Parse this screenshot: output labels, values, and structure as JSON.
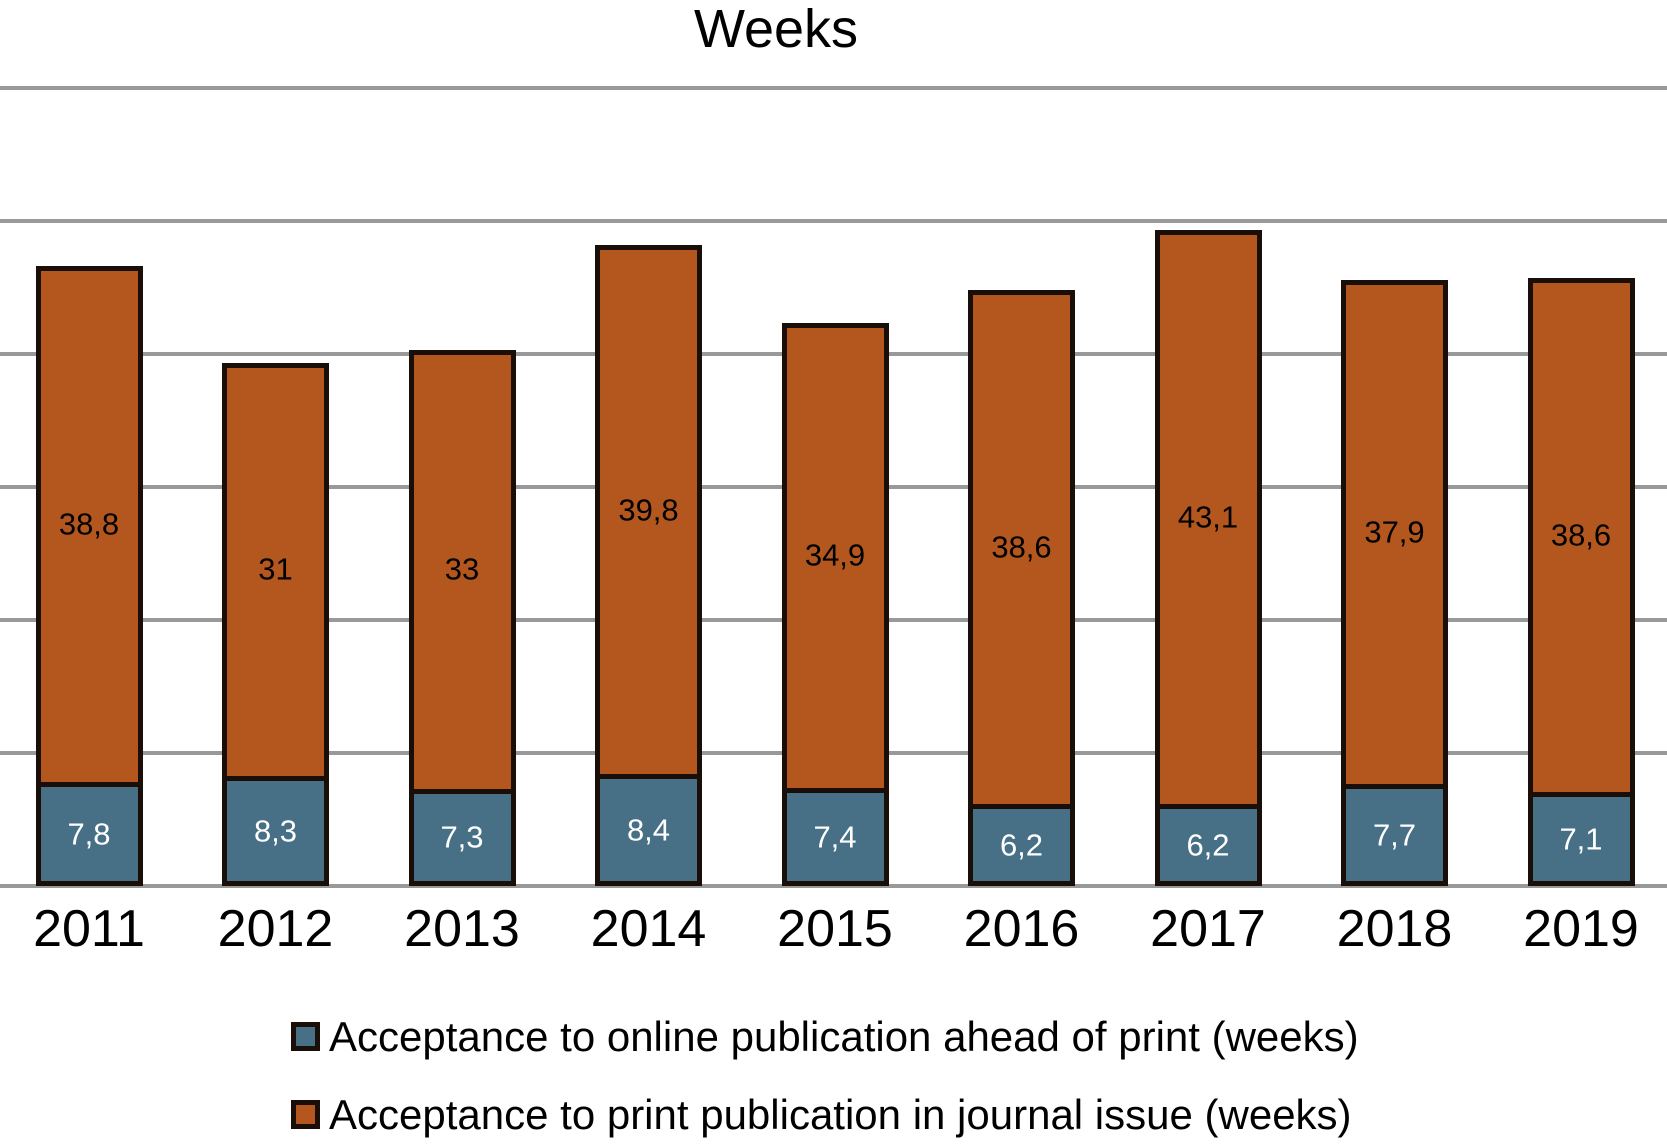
{
  "title": "Weeks",
  "chart_data": {
    "type": "bar",
    "stacked": true,
    "title": "Weeks",
    "categories": [
      "2011",
      "2012",
      "2013",
      "2014",
      "2015",
      "2016",
      "2017",
      "2018",
      "2019"
    ],
    "series": [
      {
        "name": "Acceptance to online publication ahead of print (weeks)",
        "color": "#477087",
        "label_text_color": "#FFFFFF",
        "values": [
          7.8,
          8.3,
          7.3,
          8.4,
          7.4,
          6.2,
          6.2,
          7.7,
          7.1
        ],
        "labels": [
          "7,8",
          "8,3",
          "7,3",
          "8,4",
          "7,4",
          "6,2",
          "6,2",
          "7,7",
          "7,1"
        ]
      },
      {
        "name": "Acceptance to print publication in journal issue (weeks)",
        "color": "#B4571E",
        "label_text_color": "#000000",
        "values": [
          38.8,
          31,
          33,
          39.8,
          34.9,
          38.6,
          43.1,
          37.9,
          38.6
        ],
        "labels": [
          "38,8",
          "31",
          "33",
          "39,8",
          "34,9",
          "38,6",
          "43,1",
          "37,9",
          "38,6"
        ]
      }
    ],
    "totals_display": [
      "46,6",
      "39,3",
      "40,3",
      "48,2",
      "42,3",
      "44,8",
      "49,3",
      "45,6",
      "45,7"
    ],
    "ylim": [
      0,
      60
    ],
    "gridline_step": 10,
    "y_axis_tick_labels_visible": false,
    "grid": true,
    "legend_position": "bottom",
    "decimal_separator": ","
  },
  "colors": {
    "background": "#FFFFFF",
    "bar_border": "#1A0F08",
    "gridline": "#999999",
    "title_text": "#000000",
    "axis_text": "#000000"
  }
}
